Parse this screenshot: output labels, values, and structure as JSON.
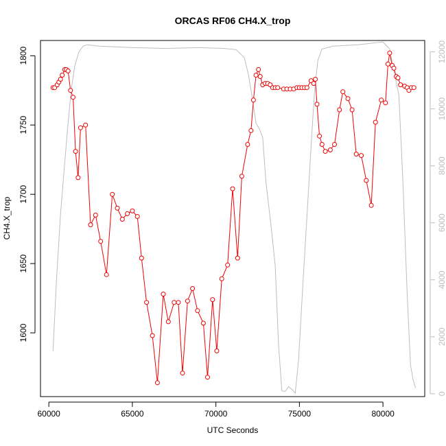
{
  "chart_data": {
    "type": "line",
    "title": "ORCAS RF06 CH4.X_trop",
    "xlabel": "UTC Seconds",
    "ylabel": "CH4.X_trop",
    "xlim": [
      59500,
      82500
    ],
    "ylim": [
      1554,
      1811
    ],
    "y2lim": [
      -100,
      12400
    ],
    "x_ticks": [
      60000,
      65000,
      70000,
      75000,
      80000
    ],
    "y_ticks": [
      1600,
      1650,
      1700,
      1750,
      1800
    ],
    "y2_ticks": [
      0,
      2000,
      4000,
      6000,
      8000,
      10000,
      12000
    ],
    "grid": false,
    "series": [
      {
        "color": "#ee0000",
        "style": "line+points",
        "axis": "left",
        "points": [
          [
            60250,
            1777
          ],
          [
            60350,
            1777
          ],
          [
            60500,
            1779
          ],
          [
            60600,
            1781
          ],
          [
            60700,
            1783
          ],
          [
            60800,
            1786
          ],
          [
            60950,
            1790
          ],
          [
            61050,
            1790
          ],
          [
            61150,
            1789
          ],
          [
            61300,
            1775
          ],
          [
            61450,
            1770
          ],
          [
            61600,
            1731
          ],
          [
            61750,
            1712
          ],
          [
            61900,
            1748
          ],
          [
            62200,
            1750
          ],
          [
            62500,
            1678
          ],
          [
            62800,
            1685
          ],
          [
            63100,
            1666
          ],
          [
            63450,
            1642
          ],
          [
            63800,
            1700
          ],
          [
            64100,
            1690
          ],
          [
            64400,
            1682
          ],
          [
            64700,
            1686
          ],
          [
            65000,
            1688
          ],
          [
            65300,
            1684
          ],
          [
            65550,
            1654
          ],
          [
            65850,
            1622
          ],
          [
            66200,
            1598
          ],
          [
            66500,
            1564
          ],
          [
            66850,
            1628
          ],
          [
            67150,
            1608
          ],
          [
            67500,
            1622
          ],
          [
            67750,
            1622
          ],
          [
            68000,
            1571
          ],
          [
            68300,
            1623
          ],
          [
            68600,
            1632
          ],
          [
            68900,
            1616
          ],
          [
            69250,
            1607
          ],
          [
            69500,
            1568
          ],
          [
            69800,
            1624
          ],
          [
            70050,
            1587
          ],
          [
            70350,
            1639
          ],
          [
            70700,
            1649
          ],
          [
            71000,
            1704
          ],
          [
            71300,
            1654
          ],
          [
            71550,
            1713
          ],
          [
            71900,
            1736
          ],
          [
            72100,
            1746
          ],
          [
            72250,
            1768
          ],
          [
            72400,
            1786
          ],
          [
            72550,
            1790
          ],
          [
            72650,
            1785
          ],
          [
            72800,
            1779
          ],
          [
            72950,
            1780
          ],
          [
            73100,
            1780
          ],
          [
            73250,
            1779
          ],
          [
            73400,
            1777
          ],
          [
            73550,
            1777
          ],
          [
            73700,
            1777
          ],
          [
            74050,
            1776
          ],
          [
            74250,
            1776
          ],
          [
            74450,
            1776
          ],
          [
            74650,
            1776
          ],
          [
            74850,
            1777
          ],
          [
            75000,
            1777
          ],
          [
            75150,
            1777
          ],
          [
            75300,
            1777
          ],
          [
            75450,
            1777
          ],
          [
            75700,
            1782
          ],
          [
            75850,
            1780
          ],
          [
            75950,
            1783
          ],
          [
            76050,
            1765
          ],
          [
            76200,
            1742
          ],
          [
            76350,
            1736
          ],
          [
            76550,
            1731
          ],
          [
            76850,
            1732
          ],
          [
            77100,
            1736
          ],
          [
            77400,
            1761
          ],
          [
            77600,
            1774
          ],
          [
            77900,
            1769
          ],
          [
            78150,
            1761
          ],
          [
            78400,
            1729
          ],
          [
            78700,
            1728
          ],
          [
            79000,
            1710
          ],
          [
            79300,
            1692
          ],
          [
            79550,
            1752
          ],
          [
            79900,
            1768
          ],
          [
            80150,
            1766
          ],
          [
            80300,
            1794
          ],
          [
            80400,
            1802
          ],
          [
            80550,
            1793
          ],
          [
            80650,
            1791
          ],
          [
            80800,
            1785
          ],
          [
            80900,
            1784
          ],
          [
            81050,
            1779
          ],
          [
            81300,
            1778
          ],
          [
            81450,
            1777
          ],
          [
            81550,
            1775
          ],
          [
            81700,
            1777
          ],
          [
            81850,
            1777
          ]
        ]
      },
      {
        "color": "#bdbdbd",
        "style": "line",
        "axis": "right",
        "points": [
          [
            60250,
            1500
          ],
          [
            60450,
            3900
          ],
          [
            60700,
            6300
          ],
          [
            60950,
            8100
          ],
          [
            61150,
            9500
          ],
          [
            61350,
            10700
          ],
          [
            61550,
            11500
          ],
          [
            61800,
            12000
          ],
          [
            62050,
            12200
          ],
          [
            62300,
            12250
          ],
          [
            63000,
            12200
          ],
          [
            65000,
            12150
          ],
          [
            67000,
            12120
          ],
          [
            69000,
            12150
          ],
          [
            70500,
            12120
          ],
          [
            71200,
            12080
          ],
          [
            71700,
            11800
          ],
          [
            71950,
            11200
          ],
          [
            72200,
            10300
          ],
          [
            72400,
            9500
          ],
          [
            72600,
            9300
          ],
          [
            72800,
            9000
          ],
          [
            73000,
            7400
          ],
          [
            73300,
            5900
          ],
          [
            73550,
            4500
          ],
          [
            73750,
            1700
          ],
          [
            73950,
            100
          ],
          [
            74150,
            80
          ],
          [
            74350,
            250
          ],
          [
            74550,
            150
          ],
          [
            74750,
            20
          ],
          [
            74950,
            1200
          ],
          [
            75200,
            3800
          ],
          [
            75450,
            6200
          ],
          [
            75700,
            8700
          ],
          [
            75900,
            10600
          ],
          [
            76100,
            11700
          ],
          [
            76350,
            12100
          ],
          [
            77000,
            12200
          ],
          [
            78500,
            12250
          ],
          [
            80000,
            12350
          ],
          [
            80400,
            12100
          ],
          [
            80700,
            11200
          ],
          [
            80950,
            10500
          ],
          [
            81200,
            7400
          ],
          [
            81450,
            3500
          ],
          [
            81650,
            1000
          ],
          [
            81800,
            500
          ],
          [
            81950,
            200
          ]
        ]
      }
    ]
  }
}
